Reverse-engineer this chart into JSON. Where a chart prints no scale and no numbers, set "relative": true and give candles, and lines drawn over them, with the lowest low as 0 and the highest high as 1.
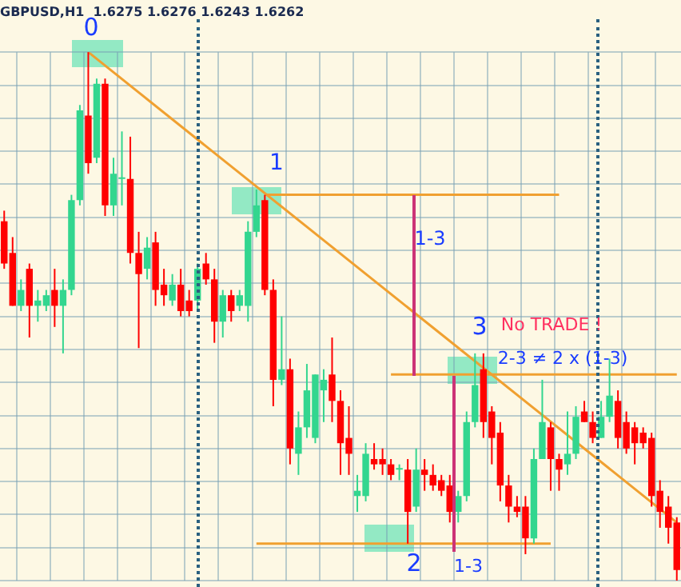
{
  "chart_data": {
    "type": "candlestick",
    "title": "GBPUSD,H1  1.6275 1.6276 1.6243 1.6262",
    "relative": true,
    "grid": true,
    "tick_labels": false,
    "categories": [
      null,
      null,
      null,
      null,
      null,
      null,
      null,
      null,
      null,
      null,
      null,
      null,
      null,
      null,
      null,
      null,
      null,
      null,
      null,
      null,
      null,
      null,
      null,
      null,
      null,
      null,
      null,
      null,
      null,
      null,
      null,
      null,
      null,
      null,
      null,
      null,
      null,
      null,
      null,
      null,
      null,
      null,
      null,
      null,
      null,
      null,
      null,
      null,
      null,
      null,
      null,
      null,
      null,
      null,
      null,
      null,
      null,
      null,
      null,
      null,
      null,
      null,
      null,
      null,
      null,
      null,
      null,
      null,
      null,
      null,
      null,
      null,
      null,
      null,
      null,
      null,
      null,
      null,
      null,
      null,
      null
    ],
    "ohlc": [
      [
        0.68,
        0.7,
        0.59,
        0.6
      ],
      [
        0.62,
        0.65,
        0.52,
        0.52
      ],
      [
        0.52,
        0.57,
        0.51,
        0.55
      ],
      [
        0.59,
        0.6,
        0.46,
        0.52
      ],
      [
        0.52,
        0.55,
        0.49,
        0.53
      ],
      [
        0.52,
        0.55,
        0.51,
        0.54
      ],
      [
        0.55,
        0.59,
        0.48,
        0.52
      ],
      [
        0.52,
        0.57,
        0.43,
        0.55
      ],
      [
        0.55,
        0.73,
        0.54,
        0.72
      ],
      [
        0.72,
        0.9,
        0.71,
        0.89
      ],
      [
        0.88,
        1,
        0.77,
        0.79
      ],
      [
        0.8,
        0.95,
        0.79,
        0.94
      ],
      [
        0.94,
        0.95,
        0.69,
        0.71
      ],
      [
        0.71,
        0.8,
        0.69,
        0.77
      ],
      [
        0.76,
        0.85,
        0.71,
        0.76
      ],
      [
        0.76,
        0.84,
        0.6,
        0.62
      ],
      [
        0.62,
        0.66,
        0.44,
        0.58
      ],
      [
        0.59,
        0.65,
        0.57,
        0.63
      ],
      [
        0.64,
        0.66,
        0.52,
        0.55
      ],
      [
        0.56,
        0.59,
        0.52,
        0.54
      ],
      [
        0.53,
        0.58,
        0.52,
        0.56
      ],
      [
        0.56,
        0.59,
        0.5,
        0.51
      ],
      [
        0.53,
        0.55,
        0.5,
        0.51
      ],
      [
        0.53,
        0.6,
        0.51,
        0.59
      ],
      [
        0.6,
        0.62,
        0.56,
        0.57
      ],
      [
        0.57,
        0.59,
        0.45,
        0.49
      ],
      [
        0.49,
        0.55,
        0.46,
        0.54
      ],
      [
        0.54,
        0.55,
        0.49,
        0.51
      ],
      [
        0.52,
        0.55,
        0.51,
        0.54
      ],
      [
        0.52,
        0.68,
        0.49,
        0.66
      ],
      [
        0.66,
        0.74,
        0.65,
        0.71
      ],
      [
        0.72,
        0.73,
        0.54,
        0.55
      ],
      [
        0.55,
        0.57,
        0.33,
        0.38
      ],
      [
        0.38,
        0.5,
        0.37,
        0.4
      ],
      [
        0.4,
        0.42,
        0.22,
        0.25
      ],
      [
        0.24,
        0.32,
        0.2,
        0.29
      ],
      [
        0.29,
        0.41,
        0.27,
        0.36
      ],
      [
        0.27,
        0.39,
        0.26,
        0.39
      ],
      [
        0.36,
        0.4,
        0.3,
        0.38
      ],
      [
        0.39,
        0.46,
        0.3,
        0.34
      ],
      [
        0.34,
        0.36,
        0.2,
        0.26
      ],
      [
        0.27,
        0.33,
        0.2,
        0.24
      ],
      [
        0.16,
        0.2,
        0.13,
        0.17
      ],
      [
        0.16,
        0.26,
        0.15,
        0.24
      ],
      [
        0.23,
        0.26,
        0.21,
        0.22
      ],
      [
        0.23,
        0.25,
        0.2,
        0.22
      ],
      [
        0.22,
        0.23,
        0.19,
        0.2
      ],
      [
        0.21,
        0.22,
        0.19,
        0.21
      ],
      [
        0.21,
        0.23,
        0.07,
        0.13
      ],
      [
        0.14,
        0.25,
        0.13,
        0.21
      ],
      [
        0.21,
        0.23,
        0.17,
        0.2
      ],
      [
        0.2,
        0.22,
        0.17,
        0.18
      ],
      [
        0.19,
        0.2,
        0.16,
        0.17
      ],
      [
        0.18,
        0.2,
        0.11,
        0.13
      ],
      [
        0.13,
        0.17,
        0.11,
        0.16
      ],
      [
        0.16,
        0.32,
        0.15,
        0.3
      ],
      [
        0.3,
        0.43,
        0.29,
        0.37
      ],
      [
        0.4,
        0.43,
        0.27,
        0.3
      ],
      [
        0.32,
        0.33,
        0.22,
        0.27
      ],
      [
        0.28,
        0.3,
        0.15,
        0.18
      ],
      [
        0.18,
        0.2,
        0.11,
        0.14
      ],
      [
        0.14,
        0.16,
        0.12,
        0.13
      ],
      [
        0.14,
        0.16,
        0.05,
        0.08
      ],
      [
        0.08,
        0.25,
        0.07,
        0.23
      ],
      [
        0.23,
        0.38,
        0.23,
        0.3
      ],
      [
        0.29,
        0.3,
        0.17,
        0.23
      ],
      [
        0.23,
        0.24,
        0.17,
        0.21
      ],
      [
        0.22,
        0.32,
        0.2,
        0.24
      ],
      [
        0.24,
        0.33,
        0.23,
        0.31
      ],
      [
        0.32,
        0.34,
        0.3,
        0.3
      ],
      [
        0.3,
        0.32,
        0.26,
        0.27
      ],
      [
        0.27,
        0.34,
        0.27,
        0.31
      ],
      [
        0.31,
        0.42,
        0.3,
        0.35
      ],
      [
        0.34,
        0.36,
        0.25,
        0.27
      ],
      [
        0.3,
        0.32,
        0.24,
        0.25
      ],
      [
        0.29,
        0.3,
        0.22,
        0.26
      ],
      [
        0.28,
        0.29,
        0.25,
        0.26
      ],
      [
        0.27,
        0.28,
        0.14,
        0.16
      ],
      [
        0.17,
        0.19,
        0.1,
        0.13
      ],
      [
        0.14,
        0.16,
        0.07,
        0.1
      ],
      [
        0.11,
        0.12,
        0,
        0.02
      ]
    ],
    "colors": [
      "#ff0000",
      "#ff0000",
      "#33d68f",
      "#ff0000",
      "#33d68f",
      "#33d68f",
      "#ff0000",
      "#33d68f",
      "#33d68f",
      "#33d68f",
      "#ff0000",
      "#33d68f",
      "#ff0000",
      "#33d68f",
      "#33d68f",
      "#ff0000",
      "#ff0000",
      "#33d68f",
      "#ff0000",
      "#ff0000",
      "#33d68f",
      "#ff0000",
      "#ff0000",
      "#33d68f",
      "#ff0000",
      "#ff0000",
      "#33d68f",
      "#ff0000",
      "#33d68f",
      "#33d68f",
      "#33d68f",
      "#ff0000",
      "#ff0000",
      "#33d68f",
      "#ff0000",
      "#33d68f",
      "#33d68f",
      "#33d68f",
      "#33d68f",
      "#ff0000",
      "#ff0000",
      "#ff0000",
      "#33d68f",
      "#33d68f",
      "#ff0000",
      "#ff0000",
      "#ff0000",
      "#33d68f",
      "#ff0000",
      "#33d68f",
      "#ff0000",
      "#ff0000",
      "#ff0000",
      "#ff0000",
      "#33d68f",
      "#33d68f",
      "#33d68f",
      "#ff0000",
      "#ff0000",
      "#ff0000",
      "#ff0000",
      "#ff0000",
      "#ff0000",
      "#33d68f",
      "#33d68f",
      "#ff0000",
      "#ff0000",
      "#33d68f",
      "#33d68f",
      "#ff0000",
      "#ff0000",
      "#33d68f",
      "#33d68f",
      "#ff0000",
      "#ff0000",
      "#ff0000",
      "#ff0000",
      "#ff0000",
      "#ff0000",
      "#ff0000",
      "#ff0000"
    ],
    "series": [
      {
        "type": "line",
        "color": "#f0a030",
        "values": [
          null,
          null,
          null,
          null,
          null,
          null,
          null,
          null,
          null,
          null,
          1,
          null,
          null,
          null,
          null,
          null,
          null,
          null,
          null,
          null,
          null,
          null,
          null,
          null,
          null,
          null,
          null,
          null,
          null,
          null,
          null,
          null,
          null,
          null,
          null,
          null,
          null,
          null,
          null,
          null,
          null,
          null,
          null,
          null,
          null,
          null,
          null,
          null,
          null,
          null,
          null,
          null,
          null,
          null,
          null,
          null,
          null,
          null,
          null,
          null,
          null,
          null,
          null,
          null,
          null,
          null,
          null,
          null,
          null,
          null,
          null,
          null,
          null,
          null,
          null,
          null,
          null,
          null,
          null,
          null,
          0.11
        ]
      },
      {
        "type": "line",
        "color": "#f0a030",
        "values": [
          null,
          null,
          null,
          null,
          null,
          null,
          null,
          null,
          null,
          null,
          null,
          null,
          null,
          null,
          null,
          null,
          null,
          null,
          null,
          null,
          null,
          null,
          null,
          null,
          null,
          null,
          null,
          null,
          null,
          null,
          null,
          0.73,
          null,
          null,
          null,
          null,
          null,
          null,
          null,
          null,
          null,
          null,
          null,
          null,
          null,
          null,
          null,
          null,
          null,
          null,
          null,
          null,
          null,
          null,
          null,
          null,
          null,
          null,
          null,
          null,
          null,
          null,
          null,
          null,
          null,
          null,
          0.73,
          null,
          null,
          null,
          null,
          null,
          null,
          null,
          null,
          null,
          null,
          null,
          null,
          null,
          null
        ]
      },
      {
        "type": "line",
        "color": "#f0a030",
        "values": [
          null,
          null,
          null,
          null,
          null,
          null,
          null,
          null,
          null,
          null,
          null,
          null,
          null,
          null,
          null,
          null,
          null,
          null,
          null,
          null,
          null,
          null,
          null,
          null,
          null,
          null,
          null,
          null,
          null,
          null,
          0.07,
          null,
          null,
          null,
          null,
          null,
          null,
          null,
          null,
          null,
          null,
          null,
          null,
          null,
          null,
          null,
          null,
          null,
          null,
          null,
          null,
          null,
          null,
          null,
          null,
          null,
          null,
          null,
          null,
          null,
          null,
          null,
          null,
          null,
          null,
          0.07,
          null,
          null,
          null,
          null,
          null,
          null,
          null,
          null,
          null,
          null,
          null,
          null,
          null,
          null,
          null
        ]
      },
      {
        "type": "line",
        "color": "#f0a030",
        "values": [
          null,
          null,
          null,
          null,
          null,
          null,
          null,
          null,
          null,
          null,
          null,
          null,
          null,
          null,
          null,
          null,
          null,
          null,
          null,
          null,
          null,
          null,
          null,
          null,
          null,
          null,
          null,
          null,
          null,
          null,
          null,
          null,
          null,
          null,
          null,
          null,
          null,
          null,
          null,
          null,
          null,
          null,
          null,
          null,
          null,
          null,
          0.39,
          null,
          null,
          null,
          null,
          null,
          null,
          null,
          null,
          null,
          null,
          null,
          null,
          null,
          null,
          null,
          null,
          null,
          null,
          null,
          null,
          null,
          null,
          null,
          null,
          null,
          null,
          null,
          null,
          null,
          null,
          null,
          null,
          null,
          0.39
        ]
      }
    ],
    "annotations": [
      "0",
      "1",
      "1-3",
      "3",
      "No TRADE !",
      "2-3 ≠ 2 x (1-3)",
      "2",
      "1-3"
    ]
  }
}
